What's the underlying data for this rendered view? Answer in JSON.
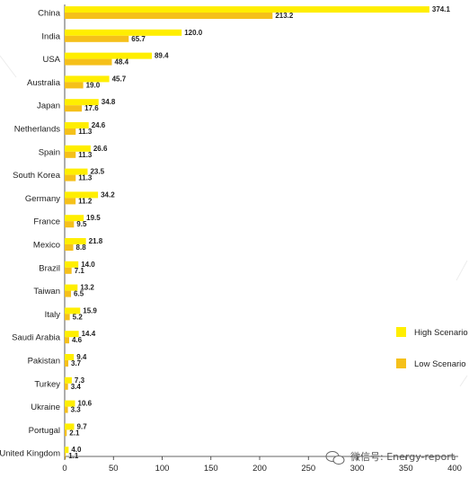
{
  "chart_data": {
    "type": "bar",
    "orientation": "horizontal",
    "categories": [
      "China",
      "India",
      "USA",
      "Australia",
      "Japan",
      "Netherlands",
      "Spain",
      "South Korea",
      "Germany",
      "France",
      "Mexico",
      "Brazil",
      "Taiwan",
      "Italy",
      "Saudi Arabia",
      "Pakistan",
      "Turkey",
      "Ukraine",
      "Portugal",
      "United Kingdom"
    ],
    "series": [
      {
        "name": "High Scenario",
        "color": "#ffee00",
        "values": [
          374.1,
          120.0,
          89.4,
          45.7,
          34.8,
          24.6,
          26.6,
          23.5,
          34.2,
          19.5,
          21.8,
          14.0,
          13.2,
          15.9,
          14.4,
          9.4,
          7.3,
          10.6,
          9.7,
          4.0
        ],
        "labels": [
          "374.1",
          "120.0",
          "89.4",
          "45.7",
          "34.8",
          "24.6",
          "26.6",
          "23.5",
          "34.2",
          "19.5",
          "21.8",
          "14.0",
          "13.2",
          "15.9",
          "14.4",
          "9.4",
          "7.3",
          "10.6",
          "9.7",
          "4.0"
        ]
      },
      {
        "name": "Low Scenario",
        "color": "#f5c01a",
        "values": [
          213.2,
          65.7,
          48.4,
          19.0,
          17.6,
          11.3,
          11.3,
          11.3,
          11.2,
          9.5,
          8.8,
          7.1,
          6.5,
          5.2,
          4.6,
          3.7,
          3.4,
          3.3,
          2.1,
          1.1
        ],
        "labels": [
          "213.2",
          "65.7",
          "48.4",
          "19.0",
          "17.6",
          "11.3",
          "11.3",
          "11.3",
          "11.2",
          "9.5",
          "8.8",
          "7.1",
          "6.5",
          "5.2",
          "4.6",
          "3.7",
          "3.4",
          "3.3",
          "2.1",
          "1.1"
        ]
      }
    ],
    "x_ticks": [
      "0",
      "50",
      "100",
      "150",
      "200",
      "250",
      "300",
      "350",
      "400"
    ],
    "xlim": [
      0,
      400
    ],
    "grid": false,
    "legend_position": "right"
  },
  "watermark": "微信号: Energy-report"
}
